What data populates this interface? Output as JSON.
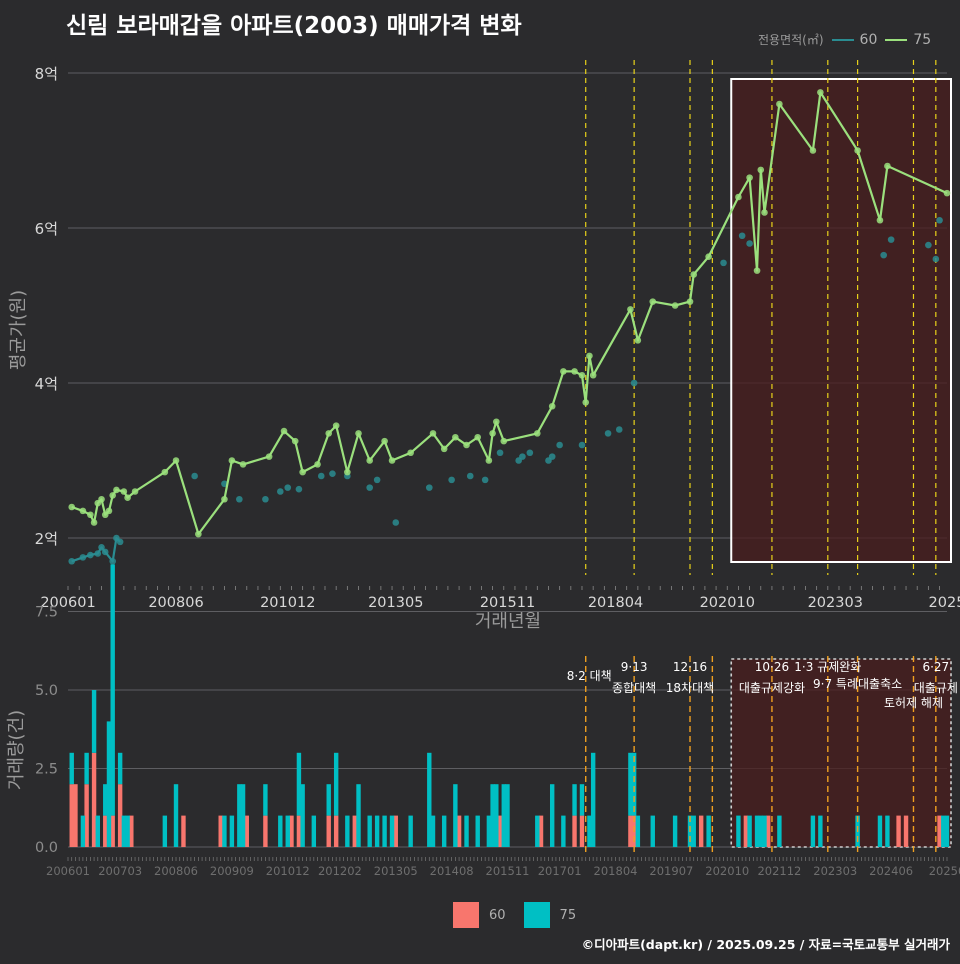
{
  "title": "신림 보라매갑을 아파트(2003) 매매가격 변화",
  "source": "©디아파트(dapt.kr) / 2025.09.25 / 자료=국토교통부 실거래가",
  "legend_top": {
    "title": "전용면적(㎡)",
    "items": [
      {
        "label": "60",
        "color": "#2a8c91"
      },
      {
        "label": "75",
        "color": "#9be07d"
      }
    ]
  },
  "legend_bottom": {
    "items": [
      {
        "label": "60",
        "color": "#f8766d"
      },
      {
        "label": "75",
        "color": "#00bfc4"
      }
    ]
  },
  "chart_data": [
    {
      "type": "line",
      "xlabel": "거래년월",
      "ylabel": "평균가(원)",
      "y_ticks": [
        {
          "value": 2,
          "label": "2억"
        },
        {
          "value": 4,
          "label": "4억"
        },
        {
          "value": 6,
          "label": "6억"
        },
        {
          "value": 8,
          "label": "8억"
        }
      ],
      "x_ticks": [
        "200601",
        "200806",
        "201012",
        "201305",
        "201511",
        "201804",
        "202010",
        "202303",
        "2025"
      ],
      "x_range": [
        "2006-01",
        "2025-09"
      ],
      "ylim": [
        1.6,
        8.2
      ],
      "unit": "억원",
      "highlight_box": [
        "2020-10",
        "2025-09"
      ],
      "policy_dates": [
        "2017-08",
        "2018-09",
        "2019-12",
        "2020-06",
        "2021-10",
        "2023-01",
        "2023-09",
        "2024-12",
        "2025-06"
      ],
      "series": [
        {
          "name": "60",
          "color": "#2a8c91",
          "points": [
            [
              "2006-02",
              1.7
            ],
            [
              "2006-05",
              1.75
            ],
            [
              "2006-07",
              1.78
            ],
            [
              "2006-09",
              1.8
            ],
            [
              "2006-10",
              1.88
            ],
            [
              "2006-11",
              1.82
            ],
            [
              "2007-01",
              1.7
            ],
            [
              "2007-02",
              2.0
            ],
            [
              "2007-03",
              1.95
            ],
            [
              "2008-11",
              2.8
            ],
            [
              "2009-07",
              2.7
            ],
            [
              "2009-11",
              2.5
            ],
            [
              "2010-06",
              2.5
            ],
            [
              "2010-10",
              2.6
            ],
            [
              "2010-12",
              2.65
            ],
            [
              "2011-03",
              2.63
            ],
            [
              "2011-09",
              2.8
            ],
            [
              "2011-12",
              2.83
            ],
            [
              "2012-04",
              2.8
            ],
            [
              "2012-10",
              2.65
            ],
            [
              "2012-12",
              2.75
            ],
            [
              "2013-05",
              2.2
            ],
            [
              "2014-02",
              2.65
            ],
            [
              "2014-08",
              2.75
            ],
            [
              "2015-01",
              2.8
            ],
            [
              "2015-05",
              2.75
            ],
            [
              "2015-09",
              3.1
            ],
            [
              "2016-02",
              3.0
            ],
            [
              "2016-03",
              3.05
            ],
            [
              "2016-05",
              3.1
            ],
            [
              "2016-10",
              3.0
            ],
            [
              "2016-11",
              3.05
            ],
            [
              "2017-01",
              3.2
            ],
            [
              "2017-07",
              3.2
            ],
            [
              "2018-02",
              3.35
            ],
            [
              "2018-05",
              3.4
            ],
            [
              "2018-09",
              4.0
            ],
            [
              "2020-09",
              5.55
            ],
            [
              "2021-02",
              5.9
            ],
            [
              "2021-04",
              5.8
            ],
            [
              "2024-04",
              5.65
            ],
            [
              "2024-06",
              5.85
            ],
            [
              "2025-04",
              5.78
            ],
            [
              "2025-06",
              5.6
            ],
            [
              "2025-07",
              6.1
            ]
          ]
        },
        {
          "name": "75",
          "color": "#9be07d",
          "points": [
            [
              "2006-02",
              2.4
            ],
            [
              "2006-05",
              2.35
            ],
            [
              "2006-07",
              2.3
            ],
            [
              "2006-08",
              2.2
            ],
            [
              "2006-09",
              2.45
            ],
            [
              "2006-10",
              2.5
            ],
            [
              "2006-11",
              2.3
            ],
            [
              "2006-12",
              2.35
            ],
            [
              "2007-01",
              2.55
            ],
            [
              "2007-02",
              2.62
            ],
            [
              "2007-04",
              2.6
            ],
            [
              "2007-05",
              2.52
            ],
            [
              "2007-07",
              2.6
            ],
            [
              "2008-03",
              2.85
            ],
            [
              "2008-06",
              3.0
            ],
            [
              "2008-12",
              2.05
            ],
            [
              "2009-07",
              2.5
            ],
            [
              "2009-09",
              3.0
            ],
            [
              "2009-12",
              2.95
            ],
            [
              "2010-07",
              3.05
            ],
            [
              "2010-11",
              3.38
            ],
            [
              "2011-02",
              3.25
            ],
            [
              "2011-04",
              2.85
            ],
            [
              "2011-08",
              2.95
            ],
            [
              "2011-11",
              3.35
            ],
            [
              "2012-01",
              3.45
            ],
            [
              "2012-04",
              2.85
            ],
            [
              "2012-07",
              3.35
            ],
            [
              "2012-10",
              3.0
            ],
            [
              "2013-02",
              3.25
            ],
            [
              "2013-04",
              3.0
            ],
            [
              "2013-09",
              3.1
            ],
            [
              "2014-03",
              3.35
            ],
            [
              "2014-06",
              3.15
            ],
            [
              "2014-09",
              3.3
            ],
            [
              "2014-12",
              3.2
            ],
            [
              "2015-03",
              3.3
            ],
            [
              "2015-06",
              3.0
            ],
            [
              "2015-07",
              3.35
            ],
            [
              "2015-08",
              3.5
            ],
            [
              "2015-10",
              3.25
            ],
            [
              "2016-07",
              3.35
            ],
            [
              "2016-11",
              3.7
            ],
            [
              "2017-02",
              4.15
            ],
            [
              "2017-05",
              4.15
            ],
            [
              "2017-07",
              4.1
            ],
            [
              "2017-08",
              3.75
            ],
            [
              "2017-09",
              4.35
            ],
            [
              "2017-10",
              4.1
            ],
            [
              "2018-08",
              4.95
            ],
            [
              "2018-10",
              4.55
            ],
            [
              "2019-02",
              5.05
            ],
            [
              "2019-08",
              5.0
            ],
            [
              "2019-12",
              5.05
            ],
            [
              "2020-01",
              5.4
            ],
            [
              "2020-05",
              5.63
            ],
            [
              "2021-01",
              6.4
            ],
            [
              "2021-04",
              6.65
            ],
            [
              "2021-06",
              5.45
            ],
            [
              "2021-07",
              6.75
            ],
            [
              "2021-08",
              6.2
            ],
            [
              "2021-12",
              7.6
            ],
            [
              "2022-09",
              7.0
            ],
            [
              "2022-11",
              7.75
            ],
            [
              "2023-09",
              7.0
            ],
            [
              "2024-03",
              6.1
            ],
            [
              "2024-05",
              6.8
            ],
            [
              "2025-09",
              6.45
            ]
          ]
        }
      ]
    },
    {
      "type": "bar",
      "xlabel": "",
      "ylabel": "거래량(건)",
      "stacked": true,
      "y_ticks": [
        {
          "value": 0,
          "label": "0.0"
        },
        {
          "value": 2.5,
          "label": "2.5"
        },
        {
          "value": 5,
          "label": "5.0"
        },
        {
          "value": 7.5,
          "label": "7.5"
        }
      ],
      "x_ticks": [
        "200601",
        "200703",
        "200806",
        "200909",
        "201012",
        "201202",
        "201305",
        "201408",
        "201511",
        "201701",
        "201804",
        "201907",
        "202010",
        "202112",
        "202303",
        "202406",
        "20250"
      ],
      "ylim": [
        0,
        9
      ],
      "highlight_box": [
        "2020-10",
        "2025-09"
      ],
      "annotations": [
        {
          "date": "2017-08",
          "text": "8·2 대책"
        },
        {
          "date": "2018-09",
          "text": "9·13 종합대책"
        },
        {
          "date": "2019-12",
          "text": "12·16 18차대책"
        },
        {
          "date": "2021-10",
          "text": "10·26 대출규제강화"
        },
        {
          "date": "2023-01",
          "text": "1·3 규제완화"
        },
        {
          "date": "2023-09",
          "text": "9·7 특례대출축소"
        },
        {
          "date": "2024-12",
          "text": "토허제 해제"
        },
        {
          "date": "2025-06",
          "text": "6·27 대출규제"
        }
      ],
      "series": [
        {
          "name": "60",
          "color": "#f8766d",
          "values": [
            [
              "2006-02",
              2
            ],
            [
              "2006-03",
              2
            ],
            [
              "2006-06",
              2
            ],
            [
              "2006-08",
              3
            ],
            [
              "2006-11",
              1
            ],
            [
              "2007-01",
              1
            ],
            [
              "2007-03",
              2
            ],
            [
              "2007-06",
              1
            ],
            [
              "2008-08",
              1
            ],
            [
              "2009-06",
              1
            ],
            [
              "2010-01",
              1
            ],
            [
              "2010-06",
              1
            ],
            [
              "2011-01",
              1
            ],
            [
              "2011-03",
              1
            ],
            [
              "2011-11",
              1
            ],
            [
              "2012-01",
              1
            ],
            [
              "2012-06",
              1
            ],
            [
              "2013-05",
              1
            ],
            [
              "2014-10",
              1
            ],
            [
              "2015-09",
              1
            ],
            [
              "2016-08",
              1
            ],
            [
              "2017-05",
              1
            ],
            [
              "2017-07",
              1
            ],
            [
              "2018-08",
              1
            ],
            [
              "2018-09",
              1
            ],
            [
              "2020-03",
              1
            ],
            [
              "2021-03",
              1
            ],
            [
              "2021-09",
              1
            ],
            [
              "2024-08",
              1
            ],
            [
              "2024-10",
              1
            ],
            [
              "2025-07",
              1
            ]
          ]
        },
        {
          "name": "75",
          "color": "#00bfc4",
          "values": [
            [
              "2006-02",
              1
            ],
            [
              "2006-05",
              1
            ],
            [
              "2006-06",
              1
            ],
            [
              "2006-08",
              2
            ],
            [
              "2006-09",
              1
            ],
            [
              "2006-11",
              1
            ],
            [
              "2006-12",
              4
            ],
            [
              "2007-01",
              8
            ],
            [
              "2007-03",
              1
            ],
            [
              "2007-04",
              1
            ],
            [
              "2007-05",
              1
            ],
            [
              "2008-03",
              1
            ],
            [
              "2008-06",
              2
            ],
            [
              "2009-07",
              1
            ],
            [
              "2009-09",
              1
            ],
            [
              "2009-11",
              2
            ],
            [
              "2009-12",
              2
            ],
            [
              "2010-06",
              1
            ],
            [
              "2010-10",
              1
            ],
            [
              "2010-12",
              1
            ],
            [
              "2011-03",
              2
            ],
            [
              "2011-04",
              2
            ],
            [
              "2011-07",
              1
            ],
            [
              "2011-11",
              1
            ],
            [
              "2012-01",
              2
            ],
            [
              "2012-04",
              1
            ],
            [
              "2012-07",
              2
            ],
            [
              "2012-10",
              1
            ],
            [
              "2012-12",
              1
            ],
            [
              "2013-02",
              1
            ],
            [
              "2013-04",
              1
            ],
            [
              "2013-09",
              1
            ],
            [
              "2014-02",
              3
            ],
            [
              "2014-03",
              1
            ],
            [
              "2014-06",
              1
            ],
            [
              "2014-09",
              2
            ],
            [
              "2014-12",
              1
            ],
            [
              "2015-03",
              1
            ],
            [
              "2015-06",
              1
            ],
            [
              "2015-07",
              2
            ],
            [
              "2015-08",
              2
            ],
            [
              "2015-10",
              2
            ],
            [
              "2015-11",
              2
            ],
            [
              "2016-07",
              1
            ],
            [
              "2016-11",
              2
            ],
            [
              "2017-02",
              1
            ],
            [
              "2017-05",
              1
            ],
            [
              "2017-07",
              1
            ],
            [
              "2017-09",
              1
            ],
            [
              "2017-10",
              3
            ],
            [
              "2018-08",
              2
            ],
            [
              "2018-09",
              2
            ],
            [
              "2018-10",
              1
            ],
            [
              "2019-02",
              1
            ],
            [
              "2019-08",
              1
            ],
            [
              "2019-12",
              1
            ],
            [
              "2020-01",
              1
            ],
            [
              "2020-05",
              1
            ],
            [
              "2021-01",
              1
            ],
            [
              "2021-04",
              1
            ],
            [
              "2021-06",
              1
            ],
            [
              "2021-07",
              1
            ],
            [
              "2021-08",
              1
            ],
            [
              "2021-12",
              1
            ],
            [
              "2022-09",
              1
            ],
            [
              "2022-11",
              1
            ],
            [
              "2023-09",
              1
            ],
            [
              "2024-03",
              1
            ],
            [
              "2024-05",
              1
            ],
            [
              "2025-08",
              1
            ],
            [
              "2025-09",
              1
            ]
          ]
        }
      ]
    }
  ]
}
